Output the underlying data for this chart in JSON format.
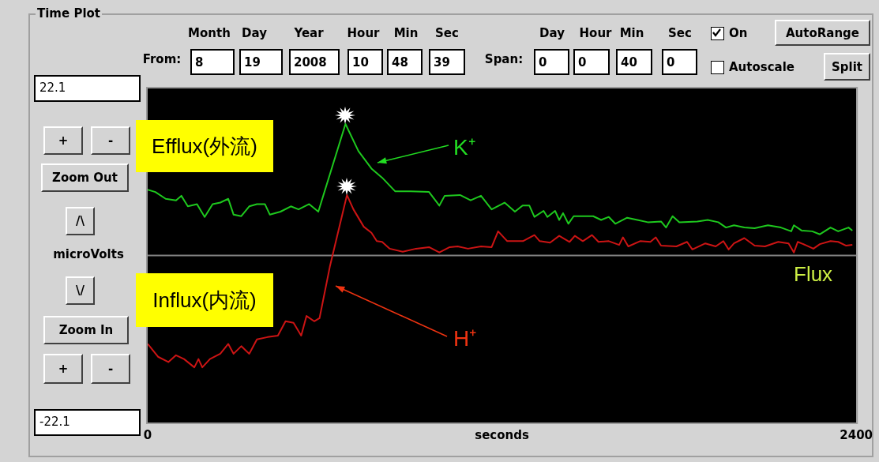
{
  "chart_data": {
    "type": "line",
    "title": "Time Plot",
    "xlabel": "seconds",
    "ylabel": "microVolts",
    "xlim": [
      0,
      2400
    ],
    "xticks": [
      0,
      2400
    ],
    "ylim": [
      -22.1,
      22.1
    ],
    "yticks": [
      -22.1,
      22.1
    ],
    "grid": false,
    "legend": false,
    "marker": "none",
    "ref_lines": [
      {
        "axis": "y",
        "value": 0,
        "label": "Flux",
        "color": "#808080"
      }
    ],
    "series": [
      {
        "color": "#1ec81e",
        "x": [
          0,
          26,
          61,
          96,
          114,
          136,
          167,
          193,
          220,
          246,
          273,
          291,
          317,
          344,
          370,
          397,
          414,
          450,
          485,
          511,
          547,
          578,
          670,
          714,
          758,
          794,
          838,
          891,
          953,
          988,
          1006,
          1058,
          1094,
          1129,
          1165,
          1200,
          1209,
          1244,
          1270,
          1293,
          1310,
          1341,
          1354,
          1380,
          1394,
          1407,
          1425,
          1443,
          1509,
          1536,
          1562,
          1584,
          1624,
          1659,
          1694,
          1739,
          1756,
          1778,
          1801,
          1862,
          1897,
          1933,
          1959,
          1986,
          2021,
          2056,
          2101,
          2145,
          2180,
          2189,
          2215,
          2251,
          2277,
          2313,
          2339,
          2374,
          2387
        ],
        "values": [
          8.7,
          8.4,
          7.5,
          7.3,
          7.9,
          6.5,
          6.8,
          5.1,
          6.8,
          7.0,
          7.5,
          5.4,
          5.2,
          6.5,
          6.8,
          6.8,
          5.4,
          5.8,
          6.5,
          6.1,
          6.8,
          5.8,
          17.4,
          13.8,
          11.5,
          10.3,
          8.5,
          8.5,
          8.4,
          6.6,
          7.9,
          8.0,
          7.3,
          7.9,
          6.1,
          6.8,
          7.0,
          5.8,
          6.6,
          6.6,
          5.1,
          5.9,
          5.1,
          5.9,
          4.7,
          5.6,
          4.2,
          5.2,
          5.2,
          4.7,
          5.1,
          4.2,
          5.0,
          4.7,
          4.4,
          4.5,
          3.7,
          5.2,
          4.4,
          4.5,
          4.7,
          4.4,
          3.7,
          4.0,
          3.7,
          3.6,
          4.0,
          3.7,
          3.2,
          4.0,
          3.3,
          3.2,
          2.8,
          3.7,
          3.2,
          3.7,
          3.3
        ]
      },
      {
        "color": "#cc1414",
        "x": [
          0,
          35,
          70,
          96,
          123,
          158,
          172,
          185,
          211,
          246,
          273,
          291,
          317,
          344,
          370,
          406,
          441,
          467,
          494,
          520,
          538,
          564,
          582,
          617,
          675,
          697,
          732,
          758,
          776,
          794,
          820,
          864,
          909,
          953,
          988,
          1023,
          1050,
          1085,
          1129,
          1165,
          1187,
          1218,
          1271,
          1310,
          1328,
          1363,
          1394,
          1429,
          1447,
          1474,
          1505,
          1527,
          1562,
          1597,
          1610,
          1628,
          1668,
          1703,
          1721,
          1739,
          1791,
          1827,
          1845,
          1889,
          1924,
          1950,
          1968,
          1986,
          2021,
          2056,
          2091,
          2136,
          2171,
          2189,
          2202,
          2233,
          2255,
          2277,
          2313,
          2339,
          2366,
          2387
        ],
        "values": [
          -11.7,
          -13.4,
          -14.1,
          -13.2,
          -13.7,
          -14.8,
          -13.7,
          -14.8,
          -13.7,
          -13.0,
          -11.7,
          -13.0,
          -12.0,
          -13.0,
          -11.1,
          -10.8,
          -10.6,
          -8.7,
          -8.9,
          -10.6,
          -8.0,
          -8.7,
          -8.3,
          -1.5,
          8.0,
          6.1,
          3.8,
          3.0,
          1.9,
          1.8,
          0.9,
          0.5,
          0.9,
          1.1,
          0.4,
          1.1,
          1.2,
          0.9,
          1.2,
          1.1,
          3.2,
          1.9,
          1.9,
          2.7,
          1.9,
          1.7,
          2.6,
          1.8,
          2.6,
          1.9,
          2.7,
          1.8,
          1.9,
          1.4,
          2.4,
          1.2,
          1.9,
          1.8,
          2.4,
          1.3,
          1.2,
          1.8,
          0.8,
          1.6,
          1.2,
          1.9,
          0.8,
          1.6,
          2.3,
          1.3,
          1.2,
          1.8,
          1.6,
          0.4,
          1.8,
          1.3,
          0.9,
          1.5,
          1.9,
          1.8,
          1.3,
          1.4
        ]
      }
    ],
    "annotations": [
      "Month",
      "Day",
      "Year",
      "Hour",
      "Min",
      "Sec",
      "From:",
      "8",
      "19",
      "2008",
      "10",
      "48",
      "39",
      "Day",
      "Hour",
      "Min",
      "Sec",
      "Span:",
      "0",
      "0",
      "40",
      "0",
      "On",
      "Autoscale",
      "AutoRange",
      "Split",
      "+",
      "-",
      "Zoom Out",
      "/\\",
      "\\/",
      "Zoom In",
      "+",
      "-",
      "Efflux(外流)",
      "Influx(内流)",
      "K⁺",
      "H⁺"
    ]
  }
}
